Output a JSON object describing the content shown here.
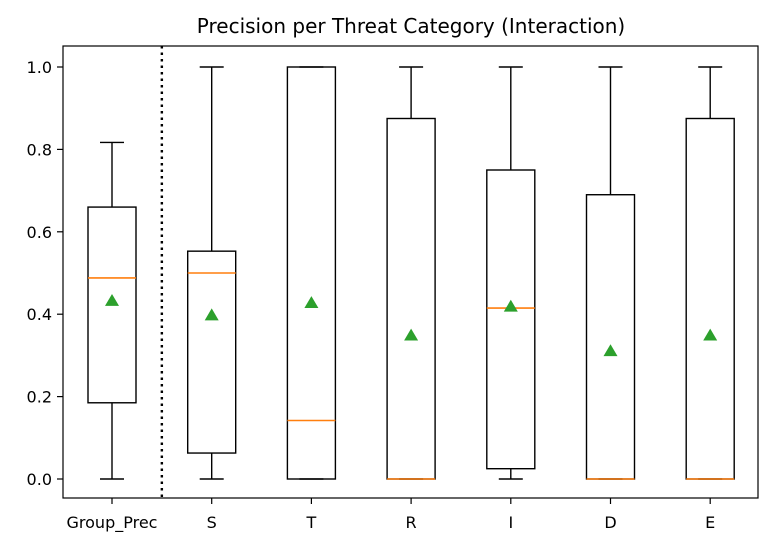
{
  "chart_data": {
    "type": "box",
    "title": "Precision per Threat Category (Interaction)",
    "xlabel": "",
    "ylabel": "",
    "ylim": [
      -0.05,
      1.05
    ],
    "yticks": [
      "0.0",
      "0.2",
      "0.4",
      "0.6",
      "0.8",
      "1.0"
    ],
    "categories": [
      "Group_Prec",
      "S",
      "T",
      "R",
      "I",
      "D",
      "E"
    ],
    "boxes": [
      {
        "label": "Group_Prec",
        "whisker_low": 0.0,
        "q1": 0.185,
        "median": 0.488,
        "q3": 0.66,
        "whisker_high": 0.817,
        "mean": 0.432
      },
      {
        "label": "S",
        "whisker_low": 0.0,
        "q1": 0.063,
        "median": 0.5,
        "q3": 0.553,
        "whisker_high": 1.0,
        "mean": 0.397
      },
      {
        "label": "T",
        "whisker_low": 0.0,
        "q1": 0.0,
        "median": 0.142,
        "q3": 1.0,
        "whisker_high": 1.0,
        "mean": 0.427
      },
      {
        "label": "R",
        "whisker_low": 0.0,
        "q1": 0.0,
        "median": 0.0,
        "q3": 0.875,
        "whisker_high": 1.0,
        "mean": 0.348
      },
      {
        "label": "I",
        "whisker_low": 0.0,
        "q1": 0.025,
        "median": 0.415,
        "q3": 0.75,
        "whisker_high": 1.0,
        "mean": 0.418
      },
      {
        "label": "D",
        "whisker_low": 0.0,
        "q1": 0.0,
        "median": 0.0,
        "q3": 0.69,
        "whisker_high": 1.0,
        "mean": 0.31
      },
      {
        "label": "E",
        "whisker_low": 0.0,
        "q1": 0.0,
        "median": 0.0,
        "q3": 0.875,
        "whisker_high": 1.0,
        "mean": 0.348
      }
    ],
    "separator": {
      "after_category": "Group_Prec",
      "style": "dotted"
    },
    "colors": {
      "box": "#000000",
      "median": "#ff7f0e",
      "mean": "#2ca02c"
    },
    "grid": false,
    "legend": "none"
  }
}
